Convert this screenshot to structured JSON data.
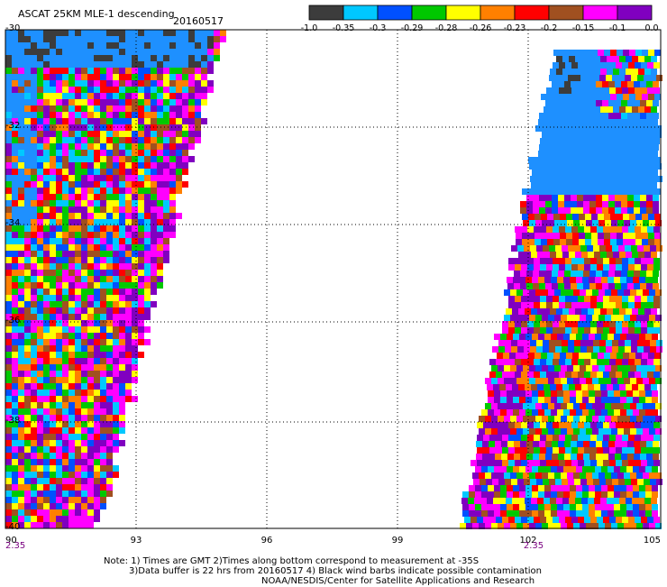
{
  "header": {
    "title": "ASCAT 25KM MLE-1 descending",
    "date": "20160517"
  },
  "colorbar": {
    "colors": [
      "#3c3c3c",
      "#00c8ff",
      "#0050ff",
      "#00c800",
      "#ffff00",
      "#ff8000",
      "#ff0000",
      "#a05020",
      "#ff00ff",
      "#8000c0"
    ],
    "labels": [
      "-1.0",
      "-0.35",
      "-0.3",
      "-0.29",
      "-0.28",
      "-0.26",
      "-0.23",
      "-0.2",
      "-0.15",
      "-0.1",
      "0.0"
    ]
  },
  "map": {
    "lat_labels": [
      "-30",
      "-32",
      "-34",
      "-36",
      "-38",
      "-40"
    ],
    "lon_labels": [
      "90",
      "93",
      "96",
      "99",
      "102",
      "105"
    ],
    "time_labels": [
      "2.35",
      "2.35"
    ],
    "no_data_color": "#1e90ff"
  },
  "notes": {
    "line1": "Note: 1) Times are GMT 2)Times along bottom correspond to measurement at -35S",
    "line2": "3)Data buffer is 22 hrs from 20160517 4) Black wind barbs indicate possible contamination",
    "line3": "NOAA/NESDIS/Center for Satellite Applications and Research"
  }
}
